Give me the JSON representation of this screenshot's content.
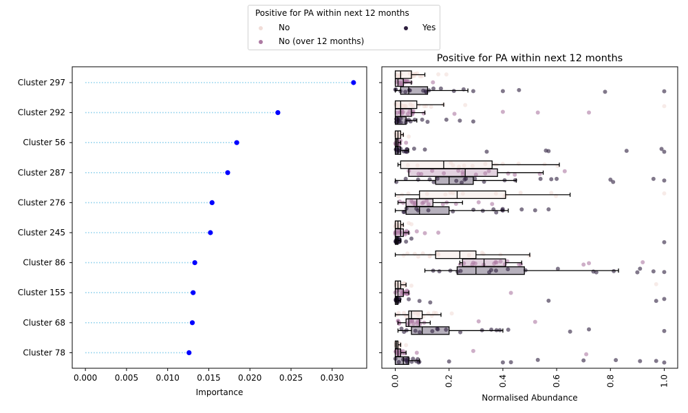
{
  "legend": {
    "title": "Positive for PA within next 12 months",
    "items": [
      {
        "label": "No",
        "color": "#f1ddd8"
      },
      {
        "label": "No (over 12 months)",
        "color": "#ad7aa3"
      },
      {
        "label": "Yes",
        "color": "#2d1e3e"
      }
    ]
  },
  "chart_data": [
    {
      "type": "scatter",
      "subtype": "lollipop",
      "title": "",
      "xlabel": "Importance",
      "ylabel": "",
      "categories": [
        "Cluster 297",
        "Cluster 292",
        "Cluster 56",
        "Cluster 287",
        "Cluster 276",
        "Cluster 245",
        "Cluster 86",
        "Cluster 155",
        "Cluster 68",
        "Cluster 78"
      ],
      "values": [
        0.0326,
        0.0234,
        0.0184,
        0.0173,
        0.0154,
        0.0152,
        0.0133,
        0.0131,
        0.013,
        0.0126
      ],
      "xlim": [
        -0.0016,
        0.0342
      ],
      "xticks": [
        "0.000",
        "0.005",
        "0.010",
        "0.015",
        "0.020",
        "0.025",
        "0.030"
      ],
      "line_color": "#87ceeb",
      "marker_color": "#0000ff",
      "grid": false
    },
    {
      "type": "box",
      "overlay": "strip",
      "title": "Positive for PA within next 12 months",
      "xlabel": "Normalised Abundance",
      "ylabel": "",
      "categories": [
        "Cluster 297",
        "Cluster 292",
        "Cluster 56",
        "Cluster 287",
        "Cluster 276",
        "Cluster 245",
        "Cluster 86",
        "Cluster 155",
        "Cluster 68",
        "Cluster 78"
      ],
      "xlim": [
        -0.05,
        1.05
      ],
      "xticks": [
        "0.0",
        "0.2",
        "0.4",
        "0.6",
        "0.8",
        "1.0"
      ],
      "hue": [
        "No",
        "No (over 12 months)",
        "Yes"
      ],
      "colors": [
        "#f1ddd8",
        "#ad7aa3",
        "#2d1e3e"
      ],
      "boxes": [
        [
          {
            "q1": 0.0,
            "med": 0.02,
            "q3": 0.06,
            "whislo": 0.0,
            "whishi": 0.11,
            "outliers": [
              0.16,
              0.19
            ]
          },
          {
            "q1": 0.0,
            "med": 0.01,
            "q3": 0.03,
            "whislo": 0.0,
            "whishi": 0.06,
            "outliers": [
              0.14
            ]
          },
          {
            "q1": 0.02,
            "med": 0.05,
            "q3": 0.12,
            "whislo": 0.0,
            "whishi": 0.27,
            "outliers": [
              0.29,
              0.4,
              0.46,
              0.78,
              1.0
            ]
          }
        ],
        [
          {
            "q1": 0.0,
            "med": 0.02,
            "q3": 0.08,
            "whislo": 0.0,
            "whishi": 0.18,
            "outliers": [
              0.26,
              1.0
            ]
          },
          {
            "q1": 0.0,
            "med": 0.02,
            "q3": 0.06,
            "whislo": 0.0,
            "whishi": 0.11,
            "outliers": [
              0.22,
              0.4,
              0.53,
              0.72
            ]
          },
          {
            "q1": 0.0,
            "med": 0.01,
            "q3": 0.04,
            "whislo": 0.0,
            "whishi": 0.08,
            "outliers": [
              0.1,
              0.12,
              0.19,
              0.24,
              0.29
            ]
          }
        ],
        [
          {
            "q1": 0.0,
            "med": 0.01,
            "q3": 0.02,
            "whislo": 0.0,
            "whishi": 0.03,
            "outliers": [
              0.05
            ]
          },
          {
            "q1": 0.0,
            "med": 0.005,
            "q3": 0.01,
            "whislo": 0.0,
            "whishi": 0.02,
            "outliers": [
              0.04
            ]
          },
          {
            "q1": 0.0,
            "med": 0.01,
            "q3": 0.02,
            "whislo": 0.0,
            "whishi": 0.05,
            "outliers": [
              0.07,
              0.11,
              0.34,
              0.56,
              0.57,
              0.86,
              0.99,
              1.0
            ]
          }
        ],
        [
          {
            "q1": 0.02,
            "med": 0.18,
            "q3": 0.36,
            "whislo": 0.01,
            "whishi": 0.61,
            "outliers": []
          },
          {
            "q1": 0.05,
            "med": 0.26,
            "q3": 0.38,
            "whislo": 0.05,
            "whishi": 0.55,
            "outliers": [
              0.63
            ]
          },
          {
            "q1": 0.15,
            "med": 0.2,
            "q3": 0.29,
            "whislo": 0.0,
            "whishi": 0.45,
            "outliers": [
              0.54,
              0.58,
              0.6,
              0.8,
              0.81,
              0.96,
              1.0
            ]
          }
        ],
        [
          {
            "q1": 0.09,
            "med": 0.23,
            "q3": 0.41,
            "whislo": 0.0,
            "whishi": 0.65,
            "outliers": [
              1.0
            ]
          },
          {
            "q1": 0.04,
            "med": 0.08,
            "q3": 0.14,
            "whislo": 0.01,
            "whishi": 0.25,
            "outliers": [
              0.31,
              0.36
            ]
          },
          {
            "q1": 0.04,
            "med": 0.09,
            "q3": 0.2,
            "whislo": 0.0,
            "whishi": 0.42,
            "outliers": [
              0.47,
              0.52,
              0.57
            ]
          }
        ],
        [
          {
            "q1": 0.0,
            "med": 0.01,
            "q3": 0.02,
            "whislo": 0.0,
            "whishi": 0.03,
            "outliers": [
              0.05,
              0.06
            ]
          },
          {
            "q1": 0.0,
            "med": 0.02,
            "q3": 0.03,
            "whislo": 0.0,
            "whishi": 0.05,
            "outliers": [
              0.08,
              0.11,
              0.16
            ]
          },
          {
            "q1": 0.0,
            "med": 0.005,
            "q3": 0.01,
            "whislo": 0.0,
            "whishi": 0.02,
            "outliers": [
              0.04,
              0.06,
              1.0
            ]
          }
        ],
        [
          {
            "q1": 0.15,
            "med": 0.24,
            "q3": 0.3,
            "whislo": 0.0,
            "whishi": 0.5,
            "outliers": []
          },
          {
            "q1": 0.25,
            "med": 0.33,
            "q3": 0.41,
            "whislo": 0.24,
            "whishi": 0.47,
            "outliers": [
              0.7,
              0.72,
              0.92
            ]
          },
          {
            "q1": 0.23,
            "med": 0.3,
            "q3": 0.48,
            "whislo": 0.11,
            "whishi": 0.83,
            "outliers": [
              0.9,
              0.91,
              0.96,
              1.0
            ]
          }
        ],
        [
          {
            "q1": 0.0,
            "med": 0.01,
            "q3": 0.02,
            "whislo": 0.0,
            "whishi": 0.04,
            "outliers": [
              0.06,
              0.97
            ]
          },
          {
            "q1": 0.0,
            "med": 0.01,
            "q3": 0.03,
            "whislo": 0.0,
            "whishi": 0.05,
            "outliers": [
              0.43
            ]
          },
          {
            "q1": 0.0,
            "med": 0.005,
            "q3": 0.01,
            "whislo": 0.0,
            "whishi": 0.02,
            "outliers": [
              0.05,
              0.09,
              0.13,
              0.57,
              0.97,
              1.0
            ]
          }
        ],
        [
          {
            "q1": 0.05,
            "med": 0.06,
            "q3": 0.1,
            "whislo": 0.0,
            "whishi": 0.17,
            "outliers": [
              0.21
            ]
          },
          {
            "q1": 0.04,
            "med": 0.05,
            "q3": 0.09,
            "whislo": 0.01,
            "whishi": 0.13,
            "outliers": [
              0.31,
              0.52
            ]
          },
          {
            "q1": 0.06,
            "med": 0.1,
            "q3": 0.2,
            "whislo": 0.01,
            "whishi": 0.4,
            "outliers": [
              0.42,
              0.65,
              0.72,
              1.0
            ]
          }
        ],
        [
          {
            "q1": 0.0,
            "med": 0.005,
            "q3": 0.01,
            "whislo": 0.0,
            "whishi": 0.02,
            "outliers": [
              0.04
            ]
          },
          {
            "q1": 0.0,
            "med": 0.01,
            "q3": 0.02,
            "whislo": 0.0,
            "whishi": 0.04,
            "outliers": [
              0.08,
              0.29,
              0.71
            ]
          },
          {
            "q1": 0.0,
            "med": 0.03,
            "q3": 0.05,
            "whislo": 0.0,
            "whishi": 0.09,
            "outliers": [
              0.2,
              0.4,
              0.43,
              0.53,
              0.7,
              0.82,
              0.91,
              0.97,
              1.0
            ]
          }
        ]
      ],
      "grid": false
    }
  ]
}
